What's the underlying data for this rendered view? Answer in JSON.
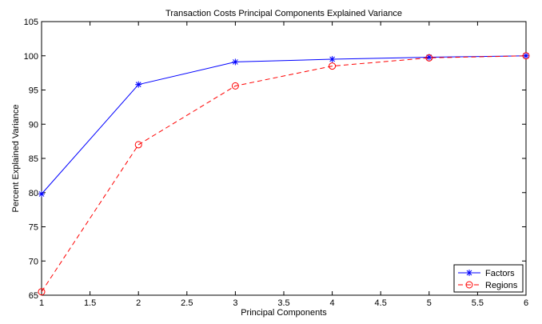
{
  "chart_data": {
    "type": "line",
    "title": "Transaction Costs Principal Components Explained Variance",
    "xlabel": "Principal Components",
    "ylabel": "Percent Explained Variance",
    "xlim": [
      1,
      6
    ],
    "ylim": [
      65,
      105
    ],
    "x_ticks": [
      "1",
      "1.5",
      "2",
      "2.5",
      "3",
      "3.5",
      "4",
      "4.5",
      "5",
      "5.5",
      "6"
    ],
    "y_ticks": [
      "65",
      "70",
      "75",
      "80",
      "85",
      "90",
      "95",
      "100",
      "105"
    ],
    "grid": false,
    "legend_position": "bottom-right",
    "x": [
      1,
      2,
      3,
      4,
      5,
      6
    ],
    "series": [
      {
        "name": "Factors",
        "color": "#0000ff",
        "line_style": "solid",
        "marker": "star",
        "values": [
          79.8,
          95.8,
          99.1,
          99.5,
          99.8,
          100
        ]
      },
      {
        "name": "Regions",
        "color": "#ff0000",
        "line_style": "dashed",
        "marker": "circle",
        "values": [
          65.5,
          87.0,
          95.6,
          98.5,
          99.7,
          100
        ]
      }
    ]
  }
}
